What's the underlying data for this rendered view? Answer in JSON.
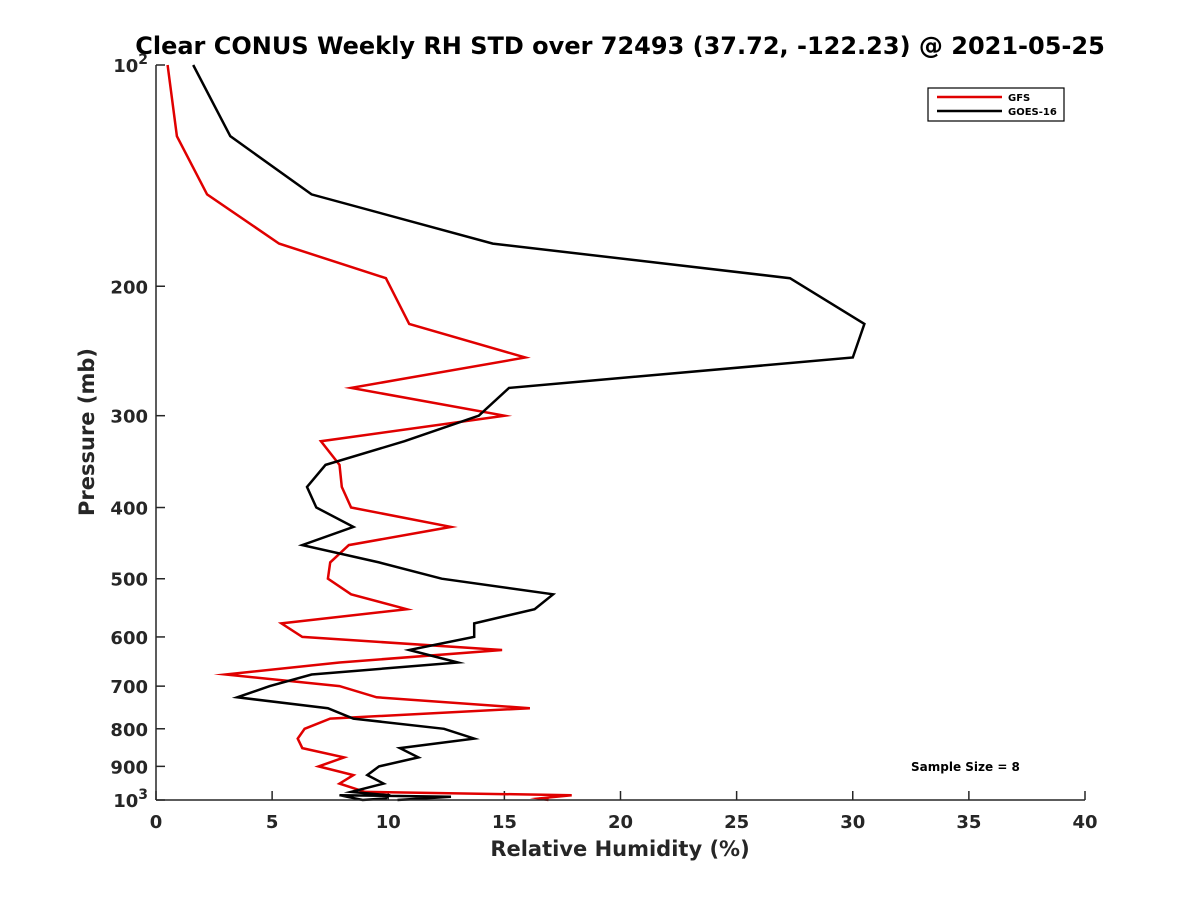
{
  "chart_data": {
    "type": "line",
    "title": "Clear CONUS Weekly RH STD over 72493 (37.72, -122.23) @ 2021-05-25",
    "xlabel": "Relative Humidity (%)",
    "ylabel": "Pressure (mb)",
    "xlim": [
      0,
      40
    ],
    "ylim": [
      100,
      1000
    ],
    "y_scale": "log",
    "y_reversed": true,
    "grid": false,
    "legend_position": "top-right",
    "x_ticks": [
      0,
      5,
      10,
      15,
      20,
      25,
      30,
      35,
      40
    ],
    "y_ticks": [
      {
        "value": 100,
        "base": "10",
        "exp": "2"
      },
      {
        "value": 200,
        "label": "200"
      },
      {
        "value": 300,
        "label": "300"
      },
      {
        "value": 400,
        "label": "400"
      },
      {
        "value": 500,
        "label": "500"
      },
      {
        "value": 600,
        "label": "600"
      },
      {
        "value": 700,
        "label": "700"
      },
      {
        "value": 800,
        "label": "800"
      },
      {
        "value": 900,
        "label": "900"
      },
      {
        "value": 1000,
        "base": "10",
        "exp": "3"
      }
    ],
    "annotation": "Sample Size = 8",
    "series": [
      {
        "name": "GFS",
        "color": "#e00000",
        "points": [
          [
            0.5,
            100
          ],
          [
            0.9,
            125
          ],
          [
            2.2,
            150
          ],
          [
            5.3,
            175
          ],
          [
            9.9,
            195
          ],
          [
            10.9,
            225
          ],
          [
            15.9,
            250
          ],
          [
            8.4,
            275
          ],
          [
            15.0,
            300
          ],
          [
            7.1,
            325
          ],
          [
            7.9,
            350
          ],
          [
            8.0,
            375
          ],
          [
            8.4,
            400
          ],
          [
            12.7,
            425
          ],
          [
            8.3,
            450
          ],
          [
            7.5,
            475
          ],
          [
            7.4,
            500
          ],
          [
            8.4,
            525
          ],
          [
            10.8,
            550
          ],
          [
            5.4,
            575
          ],
          [
            6.3,
            600
          ],
          [
            14.9,
            625
          ],
          [
            7.9,
            650
          ],
          [
            3.0,
            675
          ],
          [
            7.9,
            700
          ],
          [
            9.5,
            725
          ],
          [
            16.1,
            750
          ],
          [
            7.5,
            775
          ],
          [
            6.4,
            800
          ],
          [
            6.1,
            825
          ],
          [
            6.3,
            850
          ],
          [
            8.1,
            875
          ],
          [
            7.0,
            900
          ],
          [
            8.5,
            925
          ],
          [
            7.9,
            950
          ],
          [
            9.0,
            975
          ],
          [
            17.9,
            985
          ],
          [
            16.5,
            995
          ],
          [
            16.9,
            1000
          ]
        ]
      },
      {
        "name": "GOES-16",
        "color": "#000000",
        "points": [
          [
            1.6,
            100
          ],
          [
            3.2,
            125
          ],
          [
            6.7,
            150
          ],
          [
            14.5,
            175
          ],
          [
            27.3,
            195
          ],
          [
            30.5,
            225
          ],
          [
            30.0,
            250
          ],
          [
            15.2,
            275
          ],
          [
            13.9,
            300
          ],
          [
            10.7,
            325
          ],
          [
            7.3,
            350
          ],
          [
            6.5,
            375
          ],
          [
            6.9,
            400
          ],
          [
            8.5,
            425
          ],
          [
            6.3,
            450
          ],
          [
            9.6,
            475
          ],
          [
            12.3,
            500
          ],
          [
            17.1,
            525
          ],
          [
            16.3,
            550
          ],
          [
            13.7,
            575
          ],
          [
            13.7,
            600
          ],
          [
            10.9,
            625
          ],
          [
            13.0,
            650
          ],
          [
            6.7,
            675
          ],
          [
            4.9,
            700
          ],
          [
            3.5,
            725
          ],
          [
            7.4,
            750
          ],
          [
            8.5,
            775
          ],
          [
            12.4,
            800
          ],
          [
            13.7,
            825
          ],
          [
            10.5,
            850
          ],
          [
            11.3,
            875
          ],
          [
            9.6,
            900
          ],
          [
            9.1,
            925
          ],
          [
            9.8,
            950
          ],
          [
            8.4,
            975
          ],
          [
            10.0,
            985
          ],
          [
            9.9,
            995
          ],
          [
            8.9,
            1000
          ],
          [
            7.9,
            985
          ],
          [
            12.7,
            990
          ],
          [
            10.4,
            1000
          ]
        ]
      }
    ]
  }
}
